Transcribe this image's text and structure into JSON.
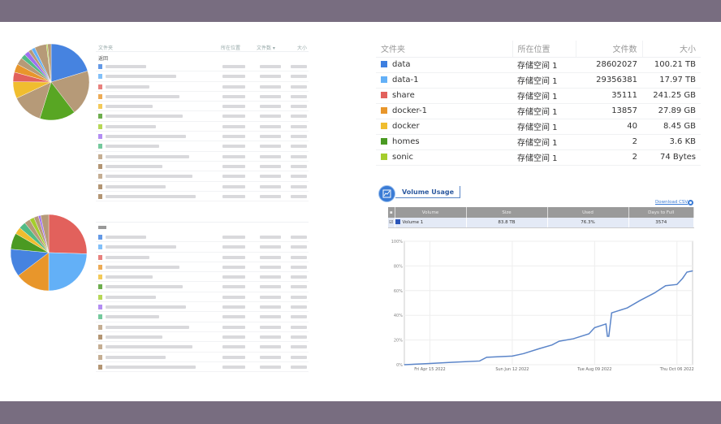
{
  "left_tables": {
    "header": {
      "folder": "文件夹",
      "location": "所在位置",
      "count": "文件数 ▾",
      "size": "大小"
    },
    "back": "返回"
  },
  "folders": {
    "headers": [
      "文件夹",
      "所在位置",
      "文件数",
      "大小"
    ],
    "rows": [
      {
        "name": "data",
        "location": "存储空间 1",
        "count": "28602027",
        "size": "100.21 TB",
        "color": "#3d7fe0"
      },
      {
        "name": "data-1",
        "location": "存储空间 1",
        "count": "29356381",
        "size": "17.97 TB",
        "color": "#63b0f7"
      },
      {
        "name": "share",
        "location": "存储空间 1",
        "count": "35111",
        "size": "241.25 GB",
        "color": "#e2615c"
      },
      {
        "name": "docker-1",
        "location": "存储空间 1",
        "count": "13857",
        "size": "27.89 GB",
        "color": "#e8962b"
      },
      {
        "name": "docker",
        "location": "存储空间 1",
        "count": "40",
        "size": "8.45 GB",
        "color": "#f0bd2f"
      },
      {
        "name": "homes",
        "location": "存储空间 1",
        "count": "2",
        "size": "3.6 KB",
        "color": "#4a9a22"
      },
      {
        "name": "sonic",
        "location": "存储空间 1",
        "count": "2",
        "size": "74 Bytes",
        "color": "#a5cd2c"
      }
    ]
  },
  "volume_usage": {
    "title": "Volume Usage",
    "download": "Download CSV",
    "headers": [
      "Volume",
      "Size",
      "Used",
      "Days to Full"
    ],
    "row": {
      "volume": "Volume 1",
      "size": "83.8 TB",
      "used": "76.3%",
      "days": "3574",
      "checked": true
    }
  },
  "chart_data": [
    {
      "type": "pie",
      "values": [
        0.2,
        0.19,
        0.15,
        0.13,
        0.07,
        0.04,
        0.035,
        0.03,
        0.02,
        0.02,
        0.015,
        0.015,
        0.05,
        0.005,
        0.015
      ],
      "colors": [
        "#4683e0",
        "#b69a78",
        "#58a623",
        "#b69a78",
        "#f0bd2f",
        "#e2615c",
        "#e8962b",
        "#b69a78",
        "#52bb85",
        "#a070f0",
        "#b69a78",
        "#63b0f7",
        "#b69a78",
        "#a5cd2c",
        "#b69a78"
      ]
    },
    {
      "type": "pie",
      "values": [
        0.26,
        0.25,
        0.15,
        0.12,
        0.07,
        0.03,
        0.03,
        0.025,
        0.02,
        0.02,
        0.01,
        0.035
      ],
      "colors": [
        "#e2615c",
        "#63b0f7",
        "#e8962b",
        "#4683e0",
        "#4a9a22",
        "#f0bd2f",
        "#52bb85",
        "#b69a78",
        "#a5cd2c",
        "#b69a78",
        "#a070f0",
        "#b69a78"
      ]
    },
    {
      "type": "line",
      "ylim": [
        0,
        100
      ],
      "yticks": [
        "0%",
        "20%",
        "40%",
        "60%",
        "80%",
        "100%"
      ],
      "xticks": [
        "Fri Apr 15 2022",
        "Sun Jun 12 2022",
        "Tue Aug 09 2022",
        "Thu Oct 06 2022"
      ],
      "grid": true,
      "color": "#5b85c9",
      "x": [
        "2022-03-28",
        "2022-04-15",
        "2022-05-01",
        "2022-05-20",
        "2022-05-25",
        "2022-06-12",
        "2022-06-20",
        "2022-07-01",
        "2022-07-10",
        "2022-07-15",
        "2022-07-25",
        "2022-08-05",
        "2022-08-09",
        "2022-08-17",
        "2022-08-18",
        "2022-08-19",
        "2022-08-21",
        "2022-09-01",
        "2022-09-10",
        "2022-09-20",
        "2022-09-28",
        "2022-10-06",
        "2022-10-10",
        "2022-10-13",
        "2022-10-17"
      ],
      "y": [
        0,
        1,
        2,
        3,
        6,
        7,
        9,
        13,
        16,
        19,
        21,
        25,
        30,
        33,
        23,
        23,
        42,
        46,
        52,
        58,
        64,
        65,
        70,
        75,
        76
      ]
    }
  ]
}
